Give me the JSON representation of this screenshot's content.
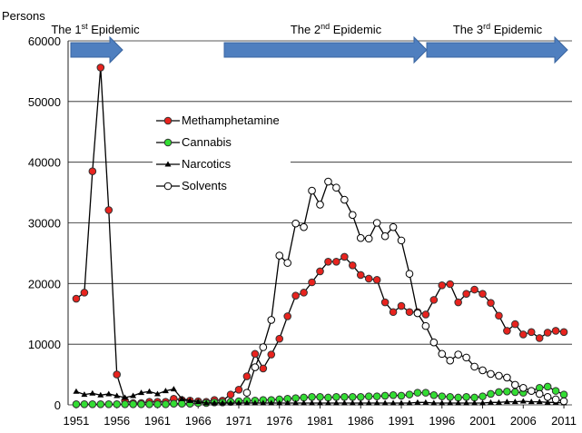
{
  "chart_data": {
    "type": "line",
    "y_label": "Persons",
    "annotations": [
      [
        "The 1",
        "st",
        " Epidemic"
      ],
      [
        "The 2",
        "nd",
        " Epidemic"
      ],
      [
        "The 3",
        "rd",
        " Epidemic"
      ]
    ],
    "x": [
      1951,
      1952,
      1953,
      1954,
      1955,
      1956,
      1957,
      1958,
      1959,
      1960,
      1961,
      1962,
      1963,
      1964,
      1965,
      1966,
      1967,
      1968,
      1969,
      1970,
      1971,
      1972,
      1973,
      1974,
      1975,
      1976,
      1977,
      1978,
      1979,
      1980,
      1981,
      1982,
      1983,
      1984,
      1985,
      1986,
      1987,
      1988,
      1989,
      1990,
      1991,
      1992,
      1993,
      1994,
      1995,
      1996,
      1997,
      1998,
      1999,
      2000,
      2001,
      2002,
      2003,
      2004,
      2005,
      2006,
      2007,
      2008,
      2009,
      2010,
      2011
    ],
    "xlim": [
      1950,
      2012
    ],
    "xticks": [
      1951,
      1956,
      1961,
      1966,
      1971,
      1976,
      1981,
      1986,
      1991,
      1996,
      2001,
      2006,
      2011
    ],
    "ylim": [
      0,
      60000
    ],
    "yticks": [
      0,
      10000,
      20000,
      30000,
      40000,
      50000,
      60000
    ],
    "grid": true,
    "series": [
      {
        "name": "Methamphetamine",
        "color": "#e8231e",
        "marker": "circle",
        "values": [
          17500,
          18500,
          38500,
          55600,
          32100,
          5000,
          700,
          300,
          300,
          500,
          500,
          500,
          1000,
          800,
          700,
          600,
          500,
          800,
          700,
          1700,
          2500,
          4700,
          8400,
          6000,
          8300,
          10900,
          14600,
          18000,
          18500,
          20200,
          22000,
          23600,
          23600,
          24400,
          23000,
          21400,
          20800,
          20600,
          16900,
          15300,
          16300,
          15300,
          15300,
          14900,
          17300,
          19700,
          19900,
          16900,
          18300,
          19000,
          18300,
          16800,
          14700,
          12200,
          13300,
          11600,
          12000,
          11000,
          11900,
          12200,
          12000
        ]
      },
      {
        "name": "Cannabis",
        "color": "#33dd33",
        "marker": "circle",
        "values": [
          100,
          100,
          100,
          100,
          100,
          100,
          100,
          100,
          100,
          100,
          100,
          100,
          200,
          200,
          200,
          300,
          300,
          400,
          400,
          500,
          600,
          700,
          700,
          800,
          800,
          900,
          1000,
          1100,
          1200,
          1300,
          1300,
          1200,
          1300,
          1300,
          1300,
          1300,
          1400,
          1400,
          1500,
          1600,
          1500,
          1700,
          2000,
          2000,
          1600,
          1400,
          1300,
          1200,
          1300,
          1200,
          1400,
          1800,
          2100,
          2200,
          2100,
          2000,
          2300,
          2800,
          3000,
          2300,
          1700
        ]
      },
      {
        "name": "Narcotics",
        "color": "#000000",
        "marker": "triangle",
        "values": [
          2200,
          1700,
          1900,
          1600,
          1800,
          1500,
          1200,
          1500,
          2000,
          2200,
          1800,
          2300,
          2600,
          1000,
          700,
          500,
          300,
          300,
          300,
          300,
          300,
          300,
          300,
          300,
          300,
          300,
          300,
          300,
          300,
          300,
          300,
          300,
          300,
          300,
          300,
          300,
          300,
          300,
          300,
          300,
          300,
          300,
          400,
          400,
          300,
          300,
          300,
          300,
          300,
          300,
          300,
          400,
          400,
          500,
          500,
          600,
          500,
          500,
          400,
          400,
          300
        ]
      },
      {
        "name": "Solvents",
        "color": "#ffffff",
        "marker": "open",
        "values": [
          null,
          null,
          null,
          null,
          null,
          null,
          null,
          null,
          null,
          null,
          null,
          null,
          null,
          null,
          null,
          null,
          null,
          null,
          null,
          null,
          null,
          2000,
          6200,
          9500,
          14000,
          24600,
          23400,
          29900,
          29300,
          35300,
          33000,
          36800,
          35800,
          33800,
          31300,
          27500,
          27400,
          30000,
          27800,
          29300,
          27100,
          21600,
          15100,
          13000,
          10300,
          8400,
          7300,
          8300,
          7800,
          6300,
          5700,
          5100,
          4800,
          4500,
          3300,
          2800,
          2300,
          1800,
          1300,
          900,
          600
        ]
      }
    ]
  }
}
